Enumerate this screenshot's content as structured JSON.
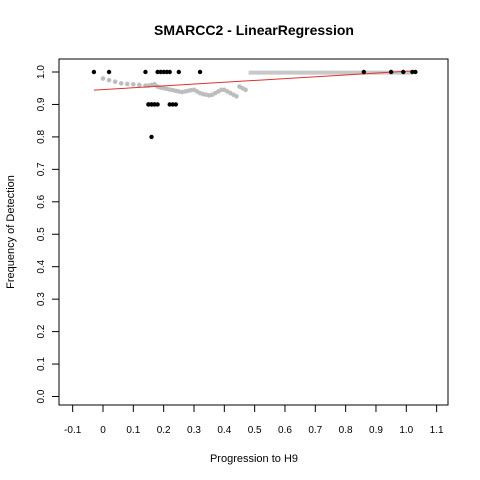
{
  "chart_data": {
    "type": "scatter",
    "title": "SMARCC2 - LinearRegression",
    "xlabel": "Progression to H9",
    "ylabel": "Frequency of Detection",
    "xlim": [
      -0.15,
      1.15
    ],
    "ylim": [
      -0.02,
      1.04
    ],
    "x_ticks": [
      "-0.1",
      "0",
      "0.1",
      "0.2",
      "0.3",
      "0.4",
      "0.5",
      "0.6",
      "0.7",
      "0.8",
      "0.9",
      "1.0",
      "1.1"
    ],
    "y_ticks": [
      "0.0",
      "0.1",
      "0.2",
      "0.3",
      "0.4",
      "0.5",
      "0.6",
      "0.7",
      "0.8",
      "0.9",
      "1.0"
    ],
    "grid": false,
    "observed_points": {
      "color": "#000000",
      "x": [
        -0.03,
        0.02,
        0.14,
        0.15,
        0.16,
        0.17,
        0.18,
        0.19,
        0.2,
        0.21,
        0.22,
        0.23,
        0.25,
        0.32,
        0.86,
        0.95,
        0.99,
        1.02,
        1.03,
        0.15,
        0.16,
        0.17,
        0.18,
        0.22,
        0.24,
        0.16
      ],
      "y": [
        1.0,
        1.0,
        1.0,
        0.9,
        0.9,
        0.9,
        1.0,
        1.0,
        1.0,
        1.0,
        1.0,
        0.9,
        1.0,
        1.0,
        1.0,
        1.0,
        1.0,
        1.0,
        1.0,
        0.9,
        0.9,
        0.9,
        0.9,
        0.9,
        0.9,
        0.8
      ]
    },
    "smoothed_series": {
      "color": "#bdbdbd",
      "x": [
        0.0,
        0.02,
        0.04,
        0.06,
        0.08,
        0.1,
        0.12,
        0.14,
        0.15,
        0.16,
        0.17,
        0.18,
        0.19,
        0.2,
        0.21,
        0.22,
        0.23,
        0.24,
        0.25,
        0.26,
        0.27,
        0.28,
        0.29,
        0.3,
        0.31,
        0.32,
        0.33,
        0.34,
        0.35,
        0.36,
        0.37,
        0.38,
        0.39,
        0.4,
        0.41,
        0.42,
        0.43,
        0.44,
        0.45,
        0.46,
        0.47
      ],
      "y": [
        0.98,
        0.975,
        0.97,
        0.965,
        0.963,
        0.962,
        0.96,
        0.958,
        0.958,
        0.96,
        0.962,
        0.955,
        0.952,
        0.95,
        0.948,
        0.946,
        0.944,
        0.942,
        0.94,
        0.938,
        0.94,
        0.942,
        0.944,
        0.945,
        0.94,
        0.935,
        0.932,
        0.93,
        0.928,
        0.93,
        0.935,
        0.94,
        0.945,
        0.945,
        0.94,
        0.935,
        0.93,
        0.925,
        0.955,
        0.95,
        0.945
      ]
    },
    "plateau_segment": {
      "color": "#c8c8c8",
      "x": [
        0.48,
        1.02
      ],
      "y": 0.998
    },
    "regression_line": {
      "color": "#e03030",
      "x": [
        -0.03,
        1.03
      ],
      "y": [
        0.944,
        1.004
      ]
    }
  }
}
